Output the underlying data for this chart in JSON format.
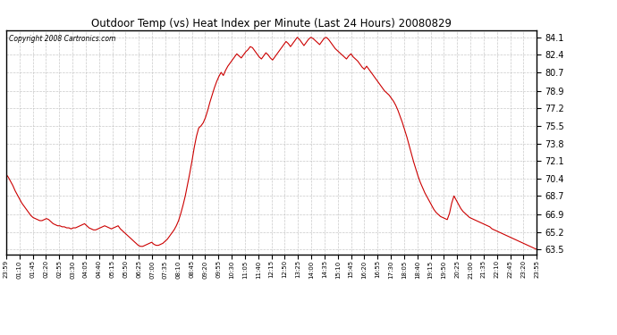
{
  "title": "Outdoor Temp (vs) Heat Index per Minute (Last 24 Hours) 20080829",
  "copyright_text": "Copyright 2008 Cartronics.com",
  "line_color": "#cc0000",
  "background_color": "#ffffff",
  "grid_color": "#bbbbbb",
  "yticks": [
    63.5,
    65.2,
    66.9,
    68.7,
    70.4,
    72.1,
    73.8,
    75.5,
    77.2,
    78.9,
    80.7,
    82.4,
    84.1
  ],
  "ylim": [
    63.0,
    84.8
  ],
  "xtick_labels": [
    "23:59",
    "01:10",
    "01:45",
    "02:20",
    "02:55",
    "03:30",
    "04:05",
    "04:40",
    "05:15",
    "05:50",
    "06:25",
    "07:00",
    "07:35",
    "08:10",
    "08:45",
    "09:20",
    "09:55",
    "10:30",
    "11:05",
    "11:40",
    "12:15",
    "12:50",
    "13:25",
    "14:00",
    "14:35",
    "15:10",
    "15:45",
    "16:20",
    "16:55",
    "17:30",
    "18:05",
    "18:40",
    "19:15",
    "19:50",
    "20:25",
    "21:00",
    "21:35",
    "22:10",
    "22:45",
    "23:20",
    "23:55"
  ],
  "data_y": [
    70.8,
    70.5,
    70.1,
    69.7,
    69.2,
    68.8,
    68.4,
    68.0,
    67.7,
    67.4,
    67.1,
    66.8,
    66.6,
    66.5,
    66.4,
    66.3,
    66.3,
    66.4,
    66.5,
    66.4,
    66.2,
    66.0,
    65.9,
    65.8,
    65.8,
    65.7,
    65.7,
    65.6,
    65.6,
    65.5,
    65.6,
    65.6,
    65.7,
    65.8,
    65.9,
    66.0,
    65.8,
    65.6,
    65.5,
    65.4,
    65.4,
    65.5,
    65.6,
    65.7,
    65.8,
    65.7,
    65.6,
    65.5,
    65.6,
    65.7,
    65.8,
    65.5,
    65.3,
    65.1,
    64.9,
    64.7,
    64.5,
    64.3,
    64.1,
    63.9,
    63.8,
    63.8,
    63.9,
    64.0,
    64.1,
    64.2,
    64.0,
    63.9,
    63.9,
    64.0,
    64.1,
    64.3,
    64.5,
    64.8,
    65.1,
    65.4,
    65.8,
    66.3,
    67.0,
    67.8,
    68.7,
    69.8,
    70.9,
    72.1,
    73.4,
    74.5,
    75.3,
    75.5,
    75.8,
    76.3,
    77.0,
    77.8,
    78.5,
    79.2,
    79.8,
    80.3,
    80.7,
    80.4,
    80.9,
    81.3,
    81.6,
    81.9,
    82.2,
    82.5,
    82.3,
    82.1,
    82.4,
    82.7,
    82.9,
    83.2,
    83.1,
    82.8,
    82.5,
    82.2,
    82.0,
    82.3,
    82.6,
    82.4,
    82.1,
    81.9,
    82.2,
    82.5,
    82.8,
    83.1,
    83.4,
    83.7,
    83.5,
    83.2,
    83.5,
    83.8,
    84.1,
    83.9,
    83.6,
    83.3,
    83.6,
    83.9,
    84.1,
    84.0,
    83.8,
    83.6,
    83.4,
    83.7,
    84.0,
    84.1,
    83.9,
    83.6,
    83.3,
    83.0,
    82.8,
    82.6,
    82.4,
    82.2,
    82.0,
    82.3,
    82.5,
    82.2,
    82.0,
    81.8,
    81.5,
    81.2,
    81.0,
    81.3,
    81.0,
    80.7,
    80.4,
    80.1,
    79.8,
    79.5,
    79.2,
    78.9,
    78.7,
    78.5,
    78.2,
    77.9,
    77.5,
    77.0,
    76.4,
    75.8,
    75.1,
    74.4,
    73.6,
    72.8,
    72.0,
    71.3,
    70.6,
    70.0,
    69.5,
    69.0,
    68.6,
    68.2,
    67.8,
    67.4,
    67.1,
    66.9,
    66.7,
    66.6,
    66.5,
    66.4,
    67.0,
    68.0,
    68.7,
    68.3,
    67.9,
    67.5,
    67.2,
    67.0,
    66.8,
    66.6,
    66.5,
    66.4,
    66.3,
    66.2,
    66.1,
    66.0,
    65.9,
    65.8,
    65.7,
    65.5,
    65.4,
    65.3,
    65.2,
    65.1,
    65.0,
    64.9,
    64.8,
    64.7,
    64.6,
    64.5,
    64.4,
    64.3,
    64.2,
    64.1,
    64.0,
    63.9,
    63.8,
    63.7,
    63.6,
    63.5
  ]
}
